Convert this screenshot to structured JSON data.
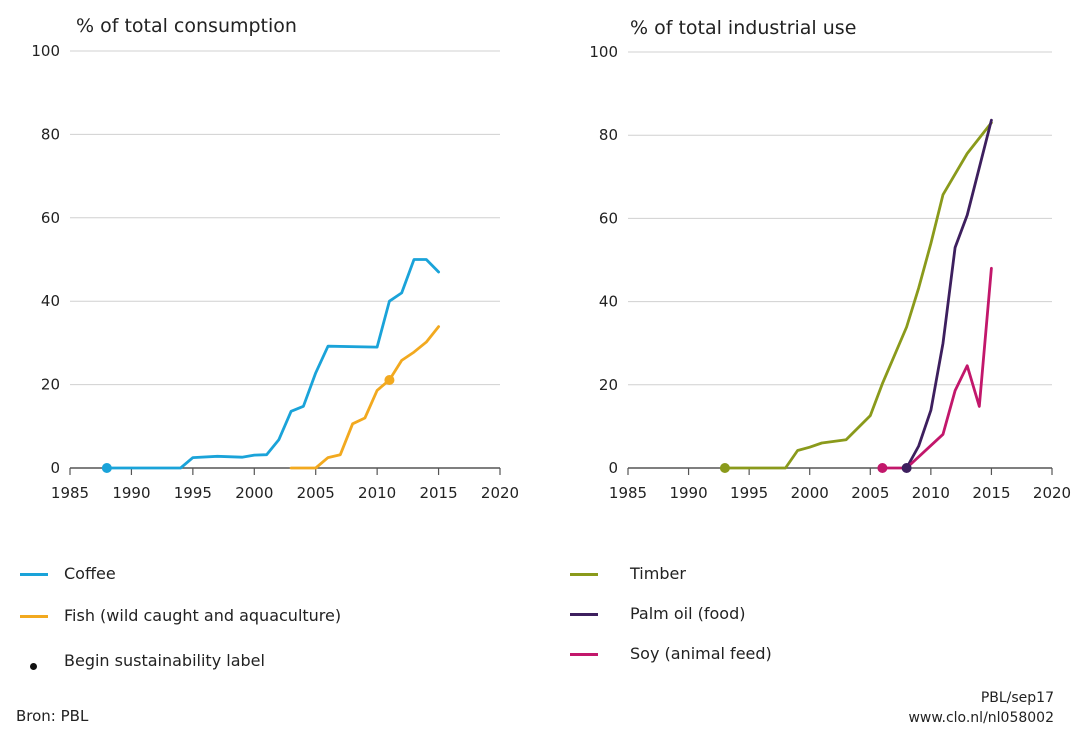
{
  "colors": {
    "coffee": "#1aa3d9",
    "fish": "#f2a91f",
    "timber": "#8a9a1b",
    "palm": "#3d1f5e",
    "soy": "#c2176b",
    "grid": "#d0d0d0",
    "axis": "#555555"
  },
  "legend_left": {
    "coffee": "Coffee",
    "fish": "Fish (wild caught and aquaculture)",
    "label_marker": "Begin sustainability label"
  },
  "legend_right": {
    "timber": "Timber",
    "palm": "Palm oil (food)",
    "soy": "Soy (animal feed)"
  },
  "footer": {
    "source": "Bron: PBL",
    "credit_line1": "PBL/sep17",
    "credit_line2": "www.clo.nl/nl058002"
  },
  "chart_data": [
    {
      "type": "line",
      "title": "% of total consumption",
      "xlim": [
        1985,
        2020
      ],
      "ylim": [
        0,
        100
      ],
      "xticks": [
        1985,
        1990,
        1995,
        2000,
        2005,
        2010,
        2015,
        2020
      ],
      "yticks": [
        0,
        20,
        40,
        60,
        80,
        100
      ],
      "grid": true,
      "series": [
        {
          "name": "Coffee",
          "color": "#1aa3d9",
          "points": [
            [
              1988,
              0
            ],
            [
              1994,
              0
            ],
            [
              1995,
              2.5
            ],
            [
              1997,
              2.8
            ],
            [
              1999,
              2.6
            ],
            [
              2000,
              3.1
            ],
            [
              2001,
              3.2
            ],
            [
              2002,
              6.8
            ],
            [
              2003,
              13.6
            ],
            [
              2004,
              14.8
            ],
            [
              2005,
              22.8
            ],
            [
              2006,
              29.2
            ],
            [
              2010,
              29.0
            ],
            [
              2011,
              40.0
            ],
            [
              2012,
              42.0
            ],
            [
              2013,
              50.0
            ],
            [
              2014,
              50.0
            ],
            [
              2015,
              47.0
            ]
          ],
          "label_start": [
            1988,
            0
          ]
        },
        {
          "name": "Fish (wild caught and aquaculture)",
          "color": "#f2a91f",
          "points": [
            [
              2003,
              0
            ],
            [
              2005,
              0
            ],
            [
              2006,
              2.5
            ],
            [
              2007,
              3.2
            ],
            [
              2008,
              10.6
            ],
            [
              2009,
              12.0
            ],
            [
              2010,
              18.6
            ],
            [
              2011,
              21.1
            ],
            [
              2012,
              25.8
            ],
            [
              2013,
              27.8
            ],
            [
              2014,
              30.2
            ],
            [
              2015,
              33.9
            ]
          ],
          "label_start": [
            2011,
            21.1
          ]
        }
      ]
    },
    {
      "type": "line",
      "title": "% of total industrial use",
      "xlim": [
        1985,
        2020
      ],
      "ylim": [
        0,
        100
      ],
      "xticks": [
        1985,
        1990,
        1995,
        2000,
        2005,
        2010,
        2015,
        2020
      ],
      "yticks": [
        0,
        20,
        40,
        60,
        80,
        100
      ],
      "grid": true,
      "series": [
        {
          "name": "Timber",
          "color": "#8a9a1b",
          "points": [
            [
              1993,
              0
            ],
            [
              1998,
              0
            ],
            [
              1999,
              4.2
            ],
            [
              2000,
              5.0
            ],
            [
              2001,
              6.0
            ],
            [
              2003,
              6.8
            ],
            [
              2005,
              12.6
            ],
            [
              2006,
              20.3
            ],
            [
              2008,
              33.9
            ],
            [
              2009,
              43.3
            ],
            [
              2010,
              54.0
            ],
            [
              2011,
              65.7
            ],
            [
              2013,
              75.6
            ],
            [
              2015,
              83.0
            ]
          ],
          "label_start": [
            1993,
            0
          ]
        },
        {
          "name": "Palm oil (food)",
          "color": "#3d1f5e",
          "points": [
            [
              2008,
              0
            ],
            [
              2009,
              5.3
            ],
            [
              2010,
              13.9
            ],
            [
              2011,
              30.0
            ],
            [
              2012,
              53.0
            ],
            [
              2013,
              60.8
            ],
            [
              2015,
              83.6
            ]
          ],
          "label_start": [
            2008,
            0
          ]
        },
        {
          "name": "Soy (animal feed)",
          "color": "#c2176b",
          "points": [
            [
              2006,
              0
            ],
            [
              2008,
              0
            ],
            [
              2011,
              8.1
            ],
            [
              2012,
              18.6
            ],
            [
              2013,
              24.6
            ],
            [
              2014,
              14.8
            ],
            [
              2015,
              48.0
            ]
          ],
          "label_start": [
            2006,
            0
          ]
        }
      ]
    }
  ]
}
